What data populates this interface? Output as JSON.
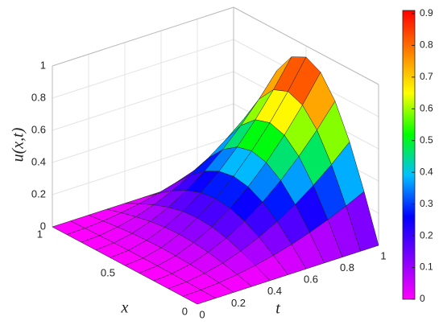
{
  "chart_data": {
    "type": "surface",
    "zlabel": "u(x,t)",
    "xlabel": "x",
    "ylabel": "t",
    "x": [
      0,
      0.1,
      0.2,
      0.3,
      0.4,
      0.5,
      0.6,
      0.7,
      0.8,
      0.9,
      1
    ],
    "y": [
      0,
      0.1,
      0.2,
      0.3,
      0.4,
      0.5,
      0.6,
      0.7,
      0.8,
      0.9,
      1
    ],
    "z": [
      [
        0,
        0,
        0,
        0,
        0,
        0,
        0,
        0,
        0,
        0,
        0
      ],
      [
        0,
        0.003,
        0.005,
        0.008,
        0.009,
        0.009,
        0.009,
        0.008,
        0.005,
        0.003,
        0
      ],
      [
        0,
        0.011,
        0.022,
        0.03,
        0.035,
        0.037,
        0.035,
        0.03,
        0.022,
        0.011,
        0
      ],
      [
        0,
        0.026,
        0.049,
        0.068,
        0.08,
        0.084,
        0.08,
        0.068,
        0.049,
        0.026,
        0
      ],
      [
        0,
        0.046,
        0.087,
        0.12,
        0.142,
        0.149,
        0.142,
        0.12,
        0.087,
        0.046,
        0
      ],
      [
        0,
        0.072,
        0.137,
        0.188,
        0.221,
        0.233,
        0.221,
        0.188,
        0.137,
        0.072,
        0
      ],
      [
        0,
        0.103,
        0.197,
        0.271,
        0.318,
        0.335,
        0.318,
        0.271,
        0.197,
        0.103,
        0
      ],
      [
        0,
        0.141,
        0.268,
        0.369,
        0.433,
        0.456,
        0.433,
        0.369,
        0.268,
        0.141,
        0
      ],
      [
        0,
        0.184,
        0.35,
        0.482,
        0.566,
        0.595,
        0.566,
        0.482,
        0.35,
        0.184,
        0
      ],
      [
        0,
        0.233,
        0.443,
        0.609,
        0.716,
        0.753,
        0.716,
        0.609,
        0.443,
        0.233,
        0
      ],
      [
        0,
        0.287,
        0.547,
        0.752,
        0.884,
        0.93,
        0.884,
        0.752,
        0.547,
        0.287,
        0
      ]
    ],
    "xlim": [
      0,
      1
    ],
    "xticks": [
      0,
      0.5,
      1
    ],
    "ylim": [
      0,
      1
    ],
    "yticks": [
      0,
      0.2,
      0.4,
      0.6,
      0.8,
      1
    ],
    "zlim": [
      0,
      1
    ],
    "zticks": [
      0,
      0.2,
      0.4,
      0.6,
      0.8,
      1
    ],
    "clim": [
      0,
      0.91
    ],
    "cticks": [
      0,
      0.1,
      0.2,
      0.3,
      0.4,
      0.5,
      0.6,
      0.7,
      0.8,
      0.9
    ],
    "colormap": [
      "#ff00ff",
      "#8000ff",
      "#0000ff",
      "#00c0ff",
      "#00ff00",
      "#ffff00",
      "#ff8000",
      "#ff0000"
    ],
    "grid": true
  }
}
